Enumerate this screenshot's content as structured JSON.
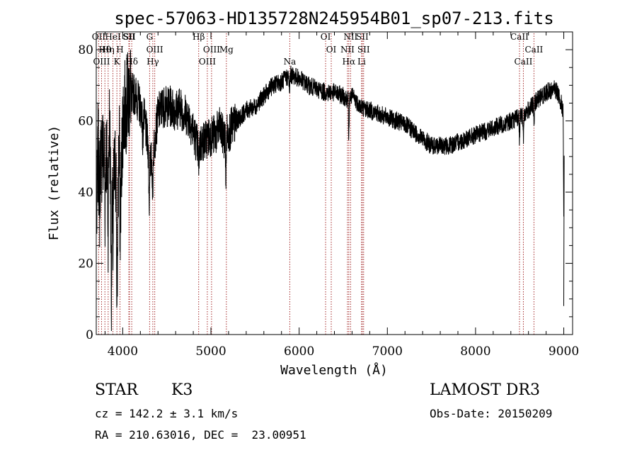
{
  "chart_data": {
    "type": "line",
    "title": "spec-57063-HD135728N245954B01_sp07-213.fits",
    "xlabel": "Wavelength (Å)",
    "ylabel": "Flux (relative)",
    "xlim": [
      3700,
      9100
    ],
    "ylim": [
      0,
      85
    ],
    "xticks": [
      4000,
      5000,
      6000,
      7000,
      8000,
      9000
    ],
    "yticks": [
      0,
      20,
      40,
      60,
      80
    ],
    "grid": false,
    "legend": "none",
    "line_color": "#000000",
    "marker_color": "#a52a2a",
    "spectrum_anchors": [
      [
        3700,
        25
      ],
      [
        3720,
        52
      ],
      [
        3740,
        40
      ],
      [
        3760,
        62
      ],
      [
        3780,
        48
      ],
      [
        3800,
        55
      ],
      [
        3830,
        45
      ],
      [
        3850,
        60
      ],
      [
        3870,
        32
      ],
      [
        3890,
        40
      ],
      [
        3920,
        48
      ],
      [
        3940,
        28
      ],
      [
        3960,
        56
      ],
      [
        3980,
        40
      ],
      [
        4000,
        60
      ],
      [
        4030,
        64
      ],
      [
        4060,
        66
      ],
      [
        4090,
        70
      ],
      [
        4110,
        68
      ],
      [
        4150,
        67
      ],
      [
        4200,
        64
      ],
      [
        4250,
        60
      ],
      [
        4300,
        50
      ],
      [
        4330,
        48
      ],
      [
        4360,
        54
      ],
      [
        4400,
        62
      ],
      [
        4450,
        64
      ],
      [
        4500,
        64
      ],
      [
        4550,
        64
      ],
      [
        4600,
        63
      ],
      [
        4650,
        64
      ],
      [
        4700,
        62
      ],
      [
        4750,
        61
      ],
      [
        4800,
        57
      ],
      [
        4850,
        53
      ],
      [
        4900,
        54
      ],
      [
        4950,
        55
      ],
      [
        5000,
        56
      ],
      [
        5050,
        56
      ],
      [
        5100,
        58
      ],
      [
        5150,
        55
      ],
      [
        5200,
        57
      ],
      [
        5300,
        60
      ],
      [
        5400,
        63
      ],
      [
        5500,
        64
      ],
      [
        5600,
        67
      ],
      [
        5700,
        70
      ],
      [
        5800,
        71
      ],
      [
        5900,
        73
      ],
      [
        6000,
        72
      ],
      [
        6100,
        70
      ],
      [
        6200,
        69
      ],
      [
        6300,
        68
      ],
      [
        6400,
        68
      ],
      [
        6500,
        67
      ],
      [
        6560,
        66
      ],
      [
        6600,
        67
      ],
      [
        6700,
        64
      ],
      [
        6800,
        63
      ],
      [
        6900,
        62
      ],
      [
        7000,
        61
      ],
      [
        7100,
        60
      ],
      [
        7200,
        59
      ],
      [
        7300,
        57
      ],
      [
        7400,
        55
      ],
      [
        7500,
        53
      ],
      [
        7600,
        53
      ],
      [
        7700,
        53
      ],
      [
        7800,
        54
      ],
      [
        7900,
        55
      ],
      [
        8000,
        56
      ],
      [
        8100,
        57
      ],
      [
        8200,
        58
      ],
      [
        8300,
        59
      ],
      [
        8400,
        60
      ],
      [
        8500,
        61
      ],
      [
        8600,
        63
      ],
      [
        8700,
        66
      ],
      [
        8800,
        68
      ],
      [
        8900,
        69
      ],
      [
        8950,
        67
      ],
      [
        9000,
        62
      ]
    ],
    "absorption_dips": [
      [
        3740,
        5
      ],
      [
        3760,
        15
      ],
      [
        3800,
        20
      ],
      [
        3835,
        18
      ],
      [
        3870,
        22
      ],
      [
        3890,
        16
      ],
      [
        3935,
        30
      ],
      [
        3970,
        22
      ],
      [
        4102,
        8
      ],
      [
        4227,
        10
      ],
      [
        4300,
        16
      ],
      [
        4340,
        12
      ],
      [
        4861,
        8
      ],
      [
        5170,
        14
      ],
      [
        5890,
        6
      ],
      [
        6563,
        12
      ],
      [
        8498,
        6
      ],
      [
        8542,
        8
      ],
      [
        8662,
        6
      ],
      [
        9000,
        30
      ]
    ],
    "spectral_lines": [
      {
        "name": "OII",
        "wavelength": 3727
      },
      {
        "name": "Hθ",
        "wavelength": 3798
      },
      {
        "name": "OIII",
        "wavelength": 3760
      },
      {
        "name": "HeI",
        "wavelength": 3889
      },
      {
        "name": "Hη",
        "wavelength": 3835
      },
      {
        "name": "K",
        "wavelength": 3934
      },
      {
        "name": "SII",
        "wavelength": 4070
      },
      {
        "name": "H",
        "wavelength": 3969
      },
      {
        "name": "Hδ",
        "wavelength": 4102
      },
      {
        "name": "SII",
        "wavelength": 4076
      },
      {
        "name": "OIII",
        "wavelength": 4363
      },
      {
        "name": "Hγ",
        "wavelength": 4341
      },
      {
        "name": "G",
        "wavelength": 4305
      },
      {
        "name": "OIII",
        "wavelength": 5007
      },
      {
        "name": "OIII",
        "wavelength": 4959
      },
      {
        "name": "Hβ",
        "wavelength": 4861
      },
      {
        "name": "Mg",
        "wavelength": 5175
      },
      {
        "name": "Na",
        "wavelength": 5894
      },
      {
        "name": "OI",
        "wavelength": 6300
      },
      {
        "name": "OI",
        "wavelength": 6364
      },
      {
        "name": "Hα",
        "wavelength": 6563
      },
      {
        "name": "SII",
        "wavelength": 6716
      },
      {
        "name": "NII",
        "wavelength": 6548
      },
      {
        "name": "Li",
        "wavelength": 6708
      },
      {
        "name": "NII",
        "wavelength": 6583
      },
      {
        "name": "SII",
        "wavelength": 6731
      },
      {
        "name": "CaII",
        "wavelength": 8542
      },
      {
        "name": "CaII",
        "wavelength": 8498
      },
      {
        "name": "CaII",
        "wavelength": 8662
      }
    ]
  },
  "info": {
    "object_class": "STAR",
    "subclass": "K3",
    "survey": "LAMOST DR3",
    "cz": "cz = 142.2 ± 3.1 km/s",
    "obs_date": "Obs-Date: 20150209",
    "coords": "RA = 210.63016, DEC =  23.00951"
  }
}
